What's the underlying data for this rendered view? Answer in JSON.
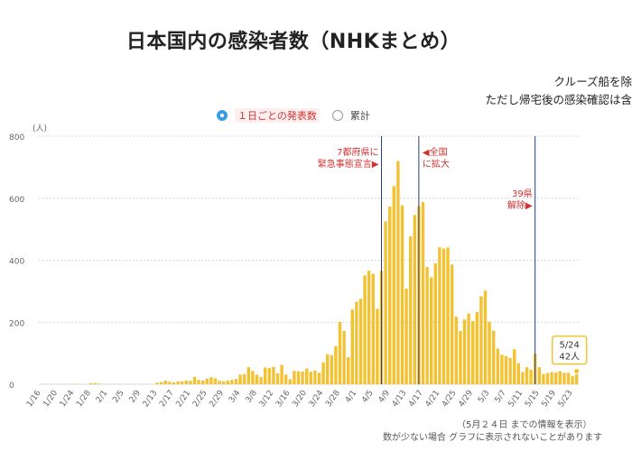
{
  "page": {
    "title": "日本国内の感染者数（NHKまとめ）",
    "note_line1": "クルーズ船を除",
    "note_line2": "ただし帰宅後の感染確認は含",
    "toggle_daily": "１日ごとの発表数",
    "toggle_total": "累計",
    "footnote_date": "（5月２４日 までの情報を表示）",
    "footnote_small": "数が少ない場合 グラフに表示されないことがあります"
  },
  "colors": {
    "bar": "#f3c233",
    "grid": "#cccccc",
    "marker_line": "#2a3b80",
    "annotation": "#d43030"
  },
  "chart_data": {
    "type": "bar",
    "title": "日本国内の感染者数（NHKまとめ）",
    "ylabel": "(人)",
    "ylim": [
      0,
      800
    ],
    "yticks": [
      "0",
      "200",
      "400",
      "600",
      "800"
    ],
    "x_start_date": "1/16",
    "xtick_labels": [
      "1/16",
      "1/20",
      "1/24",
      "1/28",
      "2/1",
      "2/5",
      "2/9",
      "2/13",
      "2/17",
      "2/21",
      "2/25",
      "2/29",
      "3/4",
      "3/8",
      "3/12",
      "3/16",
      "3/20",
      "3/24",
      "3/28",
      "4/1",
      "4/5",
      "4/9",
      "4/13",
      "4/17",
      "4/21",
      "4/25",
      "4/29",
      "5/3",
      "5/7",
      "5/11",
      "5/15",
      "5/19",
      "5/23"
    ],
    "dates": [
      "1/16",
      "1/17",
      "1/18",
      "1/19",
      "1/20",
      "1/21",
      "1/22",
      "1/23",
      "1/24",
      "1/25",
      "1/26",
      "1/27",
      "1/28",
      "1/29",
      "1/30",
      "1/31",
      "2/1",
      "2/2",
      "2/3",
      "2/4",
      "2/5",
      "2/6",
      "2/7",
      "2/8",
      "2/9",
      "2/10",
      "2/11",
      "2/12",
      "2/13",
      "2/14",
      "2/15",
      "2/16",
      "2/17",
      "2/18",
      "2/19",
      "2/20",
      "2/21",
      "2/22",
      "2/23",
      "2/24",
      "2/25",
      "2/26",
      "2/27",
      "2/28",
      "2/29",
      "3/1",
      "3/2",
      "3/3",
      "3/4",
      "3/5",
      "3/6",
      "3/7",
      "3/8",
      "3/9",
      "3/10",
      "3/11",
      "3/12",
      "3/13",
      "3/14",
      "3/15",
      "3/16",
      "3/17",
      "3/18",
      "3/19",
      "3/20",
      "3/21",
      "3/22",
      "3/23",
      "3/24",
      "3/25",
      "3/26",
      "3/27",
      "3/28",
      "3/29",
      "3/30",
      "3/31",
      "4/1",
      "4/2",
      "4/3",
      "4/4",
      "4/5",
      "4/6",
      "4/7",
      "4/8",
      "4/9",
      "4/10",
      "4/11",
      "4/12",
      "4/13",
      "4/14",
      "4/15",
      "4/16",
      "4/17",
      "4/18",
      "4/19",
      "4/20",
      "4/21",
      "4/22",
      "4/23",
      "4/24",
      "4/25",
      "4/26",
      "4/27",
      "4/28",
      "4/29",
      "4/30",
      "5/1",
      "5/2",
      "5/3",
      "5/4",
      "5/5",
      "5/6",
      "5/7",
      "5/8",
      "5/9",
      "5/10",
      "5/11",
      "5/12",
      "5/13",
      "5/14",
      "5/15",
      "5/16",
      "5/17",
      "5/18",
      "5/19",
      "5/20",
      "5/21",
      "5/22",
      "5/23",
      "5/24"
    ],
    "values": [
      1,
      0,
      0,
      0,
      0,
      0,
      0,
      1,
      1,
      1,
      0,
      0,
      3,
      4,
      2,
      1,
      0,
      0,
      0,
      1,
      0,
      0,
      0,
      0,
      0,
      0,
      0,
      0,
      5,
      7,
      12,
      8,
      6,
      10,
      9,
      12,
      11,
      24,
      14,
      12,
      18,
      23,
      19,
      12,
      9,
      12,
      14,
      17,
      31,
      33,
      55,
      43,
      31,
      23,
      54,
      52,
      56,
      35,
      62,
      31,
      16,
      43,
      42,
      41,
      51,
      40,
      44,
      37,
      71,
      97,
      94,
      123,
      201,
      172,
      87,
      241,
      266,
      276,
      351,
      366,
      356,
      243,
      366,
      525,
      573,
      639,
      720,
      577,
      308,
      477,
      546,
      574,
      588,
      378,
      345,
      390,
      442,
      438,
      441,
      386,
      218,
      172,
      209,
      228,
      204,
      233,
      284,
      302,
      202,
      173,
      115,
      95,
      91,
      85,
      113,
      68,
      39,
      55,
      47,
      99,
      55,
      33,
      36,
      39,
      38,
      42,
      37,
      37,
      26,
      42
    ],
    "tooltip": {
      "date": "5/24",
      "value": "42人"
    },
    "markers": [
      {
        "date": "4/7",
        "label_lines": [
          "7都府県に",
          "緊急事態宣言▶"
        ],
        "align": "left"
      },
      {
        "date": "4/16",
        "label_lines": [
          "◀全国",
          "に拡大"
        ],
        "align": "right"
      },
      {
        "date": "5/14",
        "label_lines": [
          "39県",
          "解除▶"
        ],
        "align": "left"
      }
    ],
    "grid": true
  }
}
